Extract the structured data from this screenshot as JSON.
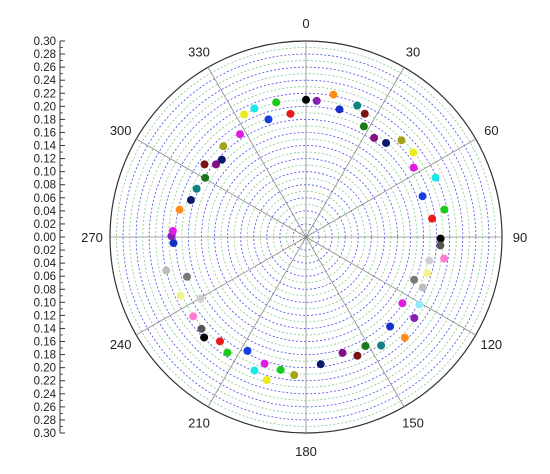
{
  "chart_data": {
    "type": "scatter",
    "subtype": "polar",
    "title": "",
    "theta_unit": "degrees",
    "theta_zero": "top",
    "theta_direction": "clockwise",
    "theta_ticks": [
      "0",
      "30",
      "60",
      "90",
      "120",
      "150",
      "180",
      "210",
      "240",
      "270",
      "300",
      "330"
    ],
    "radius_range": [
      0,
      0.3
    ],
    "radius_step": 0.01,
    "radial_scale_labels": [
      "0.30",
      "0.28",
      "0.26",
      "0.24",
      "0.22",
      "0.20",
      "0.18",
      "0.16",
      "0.14",
      "0.12",
      "0.10",
      "0.08",
      "0.06",
      "0.04",
      "0.02",
      "0.00",
      "0.02",
      "0.04",
      "0.06",
      "0.08",
      "0.10",
      "0.12",
      "0.14",
      "0.16",
      "0.18",
      "0.20",
      "0.22",
      "0.24",
      "0.26",
      "0.28",
      "0.30"
    ],
    "grid": true,
    "grid_colors": {
      "primary": "#4a4ae0",
      "secondary": "#7fc98a",
      "spokes": "#8a8a8a"
    },
    "points": [
      {
        "theta": 0,
        "r": 0.21,
        "color": "#000000"
      },
      {
        "theta": 4.5,
        "r": 0.209,
        "color": "#8a1fb5"
      },
      {
        "theta": 10.9,
        "r": 0.222,
        "color": "#ff8c1a"
      },
      {
        "theta": 14.7,
        "r": 0.202,
        "color": "#1530c8"
      },
      {
        "theta": 21.3,
        "r": 0.216,
        "color": "#108080"
      },
      {
        "theta": 25.5,
        "r": 0.209,
        "color": "#7a1515"
      },
      {
        "theta": 27.6,
        "r": 0.191,
        "color": "#1a7a1a"
      },
      {
        "theta": 34.5,
        "r": 0.184,
        "color": "#850e85"
      },
      {
        "theta": 40.4,
        "r": 0.189,
        "color": "#0c1a6b"
      },
      {
        "theta": 44.6,
        "r": 0.208,
        "color": "#a3a31a"
      },
      {
        "theta": 51.8,
        "r": 0.209,
        "color": "#ecec1a"
      },
      {
        "theta": 57.2,
        "r": 0.196,
        "color": "#e41ae4"
      },
      {
        "theta": 65.4,
        "r": 0.218,
        "color": "#1ae8e8"
      },
      {
        "theta": 70.7,
        "r": 0.189,
        "color": "#1a3de0"
      },
      {
        "theta": 78.8,
        "r": 0.216,
        "color": "#1aca1a"
      },
      {
        "theta": 81.7,
        "r": 0.195,
        "color": "#e81a1a"
      },
      {
        "theta": 90.7,
        "r": 0.206,
        "color": "#000000"
      },
      {
        "theta": 93.6,
        "r": 0.206,
        "color": "#555555"
      },
      {
        "theta": 98.9,
        "r": 0.214,
        "color": "#ff7ad0"
      },
      {
        "theta": 100.8,
        "r": 0.192,
        "color": "#cfcfcf"
      },
      {
        "theta": 106.8,
        "r": 0.194,
        "color": "#f3f38e"
      },
      {
        "theta": 111.6,
        "r": 0.178,
        "color": "#7a7a7a"
      },
      {
        "theta": 113.4,
        "r": 0.195,
        "color": "#bdbdbd"
      },
      {
        "theta": 120.8,
        "r": 0.202,
        "color": "#91eaf5"
      },
      {
        "theta": 124.5,
        "r": 0.179,
        "color": "#e41ae4"
      },
      {
        "theta": 126.8,
        "r": 0.207,
        "color": "#8a1fb5"
      },
      {
        "theta": 135.5,
        "r": 0.216,
        "color": "#ff8c1a"
      },
      {
        "theta": 136.8,
        "r": 0.188,
        "color": "#1530c8"
      },
      {
        "theta": 145.3,
        "r": 0.202,
        "color": "#108080"
      },
      {
        "theta": 151.4,
        "r": 0.19,
        "color": "#1a7a1a"
      },
      {
        "theta": 156.6,
        "r": 0.198,
        "color": "#7a1515"
      },
      {
        "theta": 162.5,
        "r": 0.186,
        "color": "#850e85"
      },
      {
        "theta": 173.4,
        "r": 0.196,
        "color": "#0c1a6b"
      },
      {
        "theta": 184.9,
        "r": 0.212,
        "color": "#a3a31a"
      },
      {
        "theta": 190.8,
        "r": 0.207,
        "color": "#1aca1a"
      },
      {
        "theta": 195.4,
        "r": 0.227,
        "color": "#ecec1a"
      },
      {
        "theta": 198.1,
        "r": 0.204,
        "color": "#e41ae4"
      },
      {
        "theta": 201.1,
        "r": 0.219,
        "color": "#1ae8e8"
      },
      {
        "theta": 207.2,
        "r": 0.196,
        "color": "#1a3de0"
      },
      {
        "theta": 214.2,
        "r": 0.214,
        "color": "#1aca1a"
      },
      {
        "theta": 219.5,
        "r": 0.207,
        "color": "#e81a1a"
      },
      {
        "theta": 225.4,
        "r": 0.219,
        "color": "#000000"
      },
      {
        "theta": 228.7,
        "r": 0.213,
        "color": "#555555"
      },
      {
        "theta": 234.9,
        "r": 0.211,
        "color": "#ff7ad0"
      },
      {
        "theta": 239.7,
        "r": 0.187,
        "color": "#cfcfcf"
      },
      {
        "theta": 244.9,
        "r": 0.212,
        "color": "#f3f38e"
      },
      {
        "theta": 251.5,
        "r": 0.192,
        "color": "#7a7a7a"
      },
      {
        "theta": 256.5,
        "r": 0.22,
        "color": "#bdbdbd"
      },
      {
        "theta": 267.4,
        "r": 0.203,
        "color": "#1530c8"
      },
      {
        "theta": 270.4,
        "r": 0.206,
        "color": "#8a1fb5"
      },
      {
        "theta": 272.6,
        "r": 0.204,
        "color": "#e41ae4"
      },
      {
        "theta": 282.2,
        "r": 0.198,
        "color": "#ff8c1a"
      },
      {
        "theta": 287.8,
        "r": 0.185,
        "color": "#0c1a6b"
      },
      {
        "theta": 293.8,
        "r": 0.183,
        "color": "#108080"
      },
      {
        "theta": 300.4,
        "r": 0.179,
        "color": "#1a7a1a"
      },
      {
        "theta": 305.6,
        "r": 0.191,
        "color": "#7a1515"
      },
      {
        "theta": 308.9,
        "r": 0.177,
        "color": "#850e85"
      },
      {
        "theta": 312.6,
        "r": 0.175,
        "color": "#0c1a6b"
      },
      {
        "theta": 317.7,
        "r": 0.188,
        "color": "#a3a31a"
      },
      {
        "theta": 327.3,
        "r": 0.187,
        "color": "#e41ae4"
      },
      {
        "theta": 333.2,
        "r": 0.21,
        "color": "#ecec1a"
      },
      {
        "theta": 338.1,
        "r": 0.212,
        "color": "#1ae8e8"
      },
      {
        "theta": 342.3,
        "r": 0.189,
        "color": "#1a3de0"
      },
      {
        "theta": 347.5,
        "r": 0.211,
        "color": "#1aca1a"
      },
      {
        "theta": 352.8,
        "r": 0.19,
        "color": "#e81a1a"
      }
    ]
  }
}
